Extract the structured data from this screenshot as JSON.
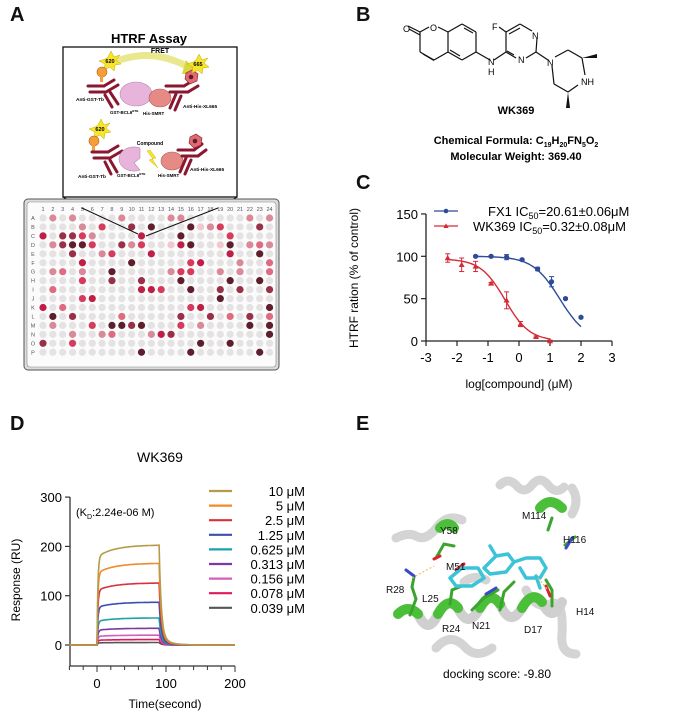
{
  "panels": {
    "A": {
      "label": "A",
      "title": "HTRF Assay",
      "fret_label": "FRET",
      "donor_emission": "620",
      "acceptor_emission": "665",
      "labels_top": {
        "anti_gst": "Anti-GST-Tb",
        "gst_bcl6": "GST-BCL6",
        "bcl6_sup": "BTB",
        "his_smrt": "His-SMRT",
        "anti_his": "Anti-His-XL665"
      },
      "labels_bottom": {
        "compound": "Compound",
        "anti_gst": "Anti-GST-Tb",
        "gst_bcl6": "GST-BCL6",
        "bcl6_sup": "BTB",
        "his_smrt": "His-SMRT",
        "anti_his": "Anti-His-XL665"
      },
      "plate": {
        "columns": [
          "1",
          "2",
          "3",
          "4",
          "5",
          "6",
          "7",
          "8",
          "9",
          "10",
          "11",
          "12",
          "13",
          "14",
          "15",
          "16",
          "17",
          "18",
          "19",
          "20",
          "21",
          "22",
          "23",
          "24"
        ],
        "rows": [
          "A",
          "B",
          "C",
          "D",
          "E",
          "F",
          "G",
          "H",
          "I",
          "J",
          "K",
          "L",
          "M",
          "N",
          "O",
          "P"
        ],
        "color_key": {
          "0": "#e4e2e2",
          "1": "#f0c8d0",
          "2": "#d98a98",
          "3": "#e06a80",
          "4": "#d63b5c",
          "5": "#bf1f45",
          "6": "#9a3048",
          "7": "#5e1e2c"
        },
        "wells": [
          "020200002000022000000202",
          "000020400607000712400060",
          "506642000050007000040000",
          "026774006240015700170232",
          "000600240005000000050070",
          "000050000700000450002003",
          "023020070000024400202003",
          "000040060060007000070070",
          "030000000055400700606006",
          "000045000000000000700000",
          "503000000000000450000007",
          "070600003000006006030603",
          "020004077670004020000707",
          "000200230002560000000007",
          "600400000000000070070000",
          "000000000070000700000070"
        ]
      }
    },
    "B": {
      "label": "B",
      "compound_name": "WK369",
      "formula_label": "Chemical Formula: ",
      "formula_parts": [
        "C",
        "19",
        "H",
        "20",
        "FN",
        "5",
        "O",
        "2"
      ],
      "mw_text": "Molecular Weight: 369.40",
      "atoms": {
        "O1": "O",
        "O2": "O",
        "F": "F",
        "N1": "N",
        "N2": "N",
        "NH_top": "N",
        "NH_bottom": "H",
        "N3": "N",
        "NH_ring": "NH"
      }
    },
    "C": {
      "label": "C"
    },
    "D": {
      "label": "D"
    },
    "E": {
      "label": "E",
      "residues": [
        "Y58",
        "M114",
        "H116",
        "M51",
        "R28",
        "L25",
        "R24",
        "N21",
        "D17",
        "H14"
      ],
      "caption": "docking score: -9.80"
    }
  },
  "chart_data": [
    {
      "panel": "C",
      "type": "line",
      "title": "",
      "xlabel": "log[compound] (μM)",
      "ylabel": "HTRF ration (% of control)",
      "xlim": [
        -3,
        3
      ],
      "ylim": [
        0,
        150
      ],
      "xticks": [
        "-3",
        "-2",
        "-1",
        "0",
        "1",
        "2",
        "3"
      ],
      "yticks": [
        "0",
        "50",
        "100",
        "150"
      ],
      "legend_position": "top",
      "series": [
        {
          "name": "FX1",
          "legend": "FX1   IC50=20.61±0.06μM",
          "legend_name": "FX1",
          "legend_ic": "IC",
          "legend_sub": "50",
          "legend_val": "=20.61±0.06μM",
          "color": "#2e4b9a",
          "marker": "circle",
          "x": [
            -1.4,
            -0.9,
            -0.4,
            0.1,
            0.6,
            1.05,
            1.5,
            2.0
          ],
          "y": [
            100,
            100,
            99,
            96,
            85,
            70,
            50,
            28
          ],
          "err": [
            1,
            1,
            3,
            1,
            2,
            6,
            1,
            1
          ]
        },
        {
          "name": "WK369",
          "legend": "WK369 IC50=0.32±0.08μM",
          "legend_name": "WK369",
          "legend_ic": "IC",
          "legend_sub": "50",
          "legend_val": "=0.32±0.08μM",
          "color": "#d62a35",
          "marker": "triangle",
          "x": [
            -2.3,
            -1.85,
            -1.4,
            -0.9,
            -0.4,
            0.05,
            0.55,
            1.0
          ],
          "y": [
            98,
            90,
            88,
            68,
            48,
            20,
            5,
            0
          ],
          "err": [
            5,
            8,
            6,
            1,
            10,
            3,
            1,
            1
          ]
        }
      ]
    },
    {
      "panel": "D",
      "type": "line",
      "title": "WK369",
      "annotation": "(KD:2.24e-06 M)",
      "annotation_pre": "(K",
      "annotation_sub": "D",
      "annotation_post": ":2.24e-06 M)",
      "xlabel": "Time(second)",
      "ylabel": "Response (RU)",
      "xlim": [
        -40,
        200
      ],
      "ylim": [
        -50,
        300
      ],
      "xticks": [
        "0",
        "100",
        "200"
      ],
      "yticks": [
        "0",
        "100",
        "200",
        "300"
      ],
      "legend_position": "right",
      "association_start": 0,
      "dissociation_start": 90,
      "series": [
        {
          "name": "10 μM",
          "color": "#b59a4a",
          "plateau": 203
        },
        {
          "name": "5 μM",
          "color": "#f08a2a",
          "plateau": 166
        },
        {
          "name": "2.5 μM",
          "color": "#d9303e",
          "plateau": 126
        },
        {
          "name": "1.25 μM",
          "color": "#3a4fb0",
          "plateau": 87
        },
        {
          "name": "0.625 μM",
          "color": "#1aa3a8",
          "plateau": 55
        },
        {
          "name": "0.313 μM",
          "color": "#7a3aa0",
          "plateau": 34
        },
        {
          "name": "0.156 μM",
          "color": "#d25fc0",
          "plateau": 20
        },
        {
          "name": "0.078 μM",
          "color": "#e0195a",
          "plateau": 11
        },
        {
          "name": "0.039 μM",
          "color": "#555555",
          "plateau": 5
        }
      ]
    }
  ]
}
